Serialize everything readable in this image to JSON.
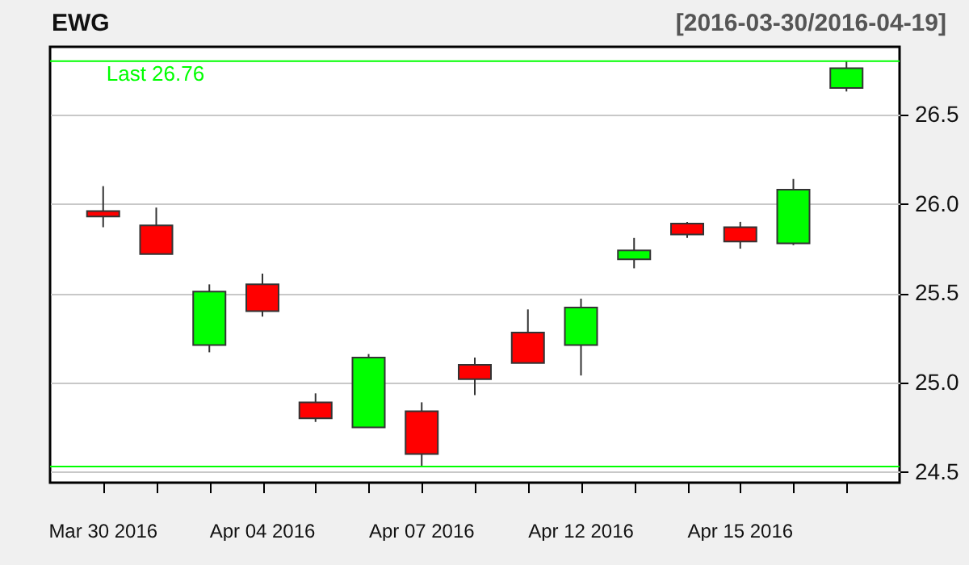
{
  "chart_data": {
    "type": "candlestick",
    "title": "EWG",
    "subtitle": "[2016-03-30/2016-04-19]",
    "categories": [
      "Mar 30 2016",
      null,
      null,
      "Apr 04 2016",
      null,
      null,
      "Apr 07 2016",
      null,
      null,
      "Apr 12 2016",
      null,
      null,
      "Apr 15 2016",
      null,
      null
    ],
    "ohlc": [
      [
        25.96,
        26.1,
        25.87,
        25.93
      ],
      [
        25.88,
        25.98,
        25.72,
        25.72
      ],
      [
        25.21,
        25.55,
        25.17,
        25.51
      ],
      [
        25.55,
        25.61,
        25.37,
        25.4
      ],
      [
        24.89,
        24.94,
        24.78,
        24.8
      ],
      [
        24.75,
        25.16,
        24.75,
        25.14
      ],
      [
        24.84,
        24.89,
        24.53,
        24.6
      ],
      [
        25.1,
        25.14,
        24.93,
        25.02
      ],
      [
        25.28,
        25.41,
        25.11,
        25.11
      ],
      [
        25.21,
        25.47,
        25.04,
        25.42
      ],
      [
        25.69,
        25.81,
        25.64,
        25.74
      ],
      [
        25.89,
        25.9,
        25.81,
        25.83
      ],
      [
        25.87,
        25.9,
        25.75,
        25.79
      ],
      [
        25.78,
        26.14,
        25.77,
        26.08
      ],
      [
        26.65,
        26.8,
        26.63,
        26.76
      ]
    ],
    "colors": [
      "#ff0000",
      "#ff0000",
      "#00ff00",
      "#ff0000",
      "#ff0000",
      "#00ff00",
      "#ff0000",
      "#ff0000",
      "#ff0000",
      "#00ff00",
      "#00ff00",
      "#ff0000",
      "#ff0000",
      "#00ff00",
      "#00ff00"
    ],
    "ylim": [
      24.44,
      26.88
    ],
    "yticks": [
      {
        "value": 24.5,
        "label": "24.5"
      },
      {
        "value": 25,
        "label": "25.0"
      },
      {
        "value": 25.5,
        "label": "25.5"
      },
      {
        "value": 26,
        "label": "26.0"
      },
      {
        "value": 26.5,
        "label": "26.5"
      }
    ],
    "grid": "y",
    "ref_lines": [
      {
        "axis": "y",
        "value": 26.8,
        "label": "Last 26.76",
        "color": "#00ff00"
      },
      {
        "axis": "y",
        "value": 24.53,
        "color": "#00ff00"
      }
    ]
  }
}
